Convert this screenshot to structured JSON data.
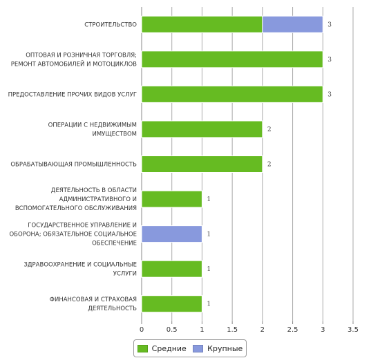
{
  "chart_data": {
    "type": "bar",
    "orientation": "horizontal",
    "stacked": true,
    "categories": [
      [
        "СТРОИТЕЛЬСТВО"
      ],
      [
        "ОПТОВАЯ И РОЗНИЧНАЯ ТОРГОВЛЯ;",
        "РЕМОНТ АВТОМОБИЛЕЙ И МОТОЦИКЛОВ"
      ],
      [
        "ПРЕДОСТАВЛЕНИЕ ПРОЧИХ ВИДОВ УСЛУГ"
      ],
      [
        "ОПЕРАЦИИ С НЕДВИЖИМЫМ",
        "ИМУЩЕСТВОМ"
      ],
      [
        "ОБРАБАТЫВАЮЩАЯ ПРОМЫШЛЕННОСТЬ"
      ],
      [
        "ДЕЯТЕЛЬНОСТЬ В ОБЛАСТИ",
        "АДМИНИСТРАТИВНОГО И",
        "ВСПОМОГАТЕЛЬНОГО ОБСЛУЖИВАНИЯ"
      ],
      [
        "ГОСУДАРСТВЕННОЕ УПРАВЛЕНИЕ И",
        "ОБОРОНА; ОБЯЗАТЕЛЬНОЕ СОЦИАЛЬНОЕ",
        "ОБЕСПЕЧЕНИЕ"
      ],
      [
        "ЗДРАВООХРАНЕНИЕ И СОЦИАЛЬНЫЕ",
        "УСЛУГИ"
      ],
      [
        "ФИНАНСОВАЯ И СТРАХОВАЯ",
        "ДЕЯТЕЛЬНОСТЬ"
      ]
    ],
    "series": [
      {
        "name": "Средние",
        "color": "#66bb22",
        "values": [
          2,
          3,
          3,
          2,
          2,
          1,
          0,
          1,
          1
        ]
      },
      {
        "name": "Крупные",
        "color": "#8899dd",
        "values": [
          1,
          0,
          0,
          0,
          0,
          0,
          1,
          0,
          0
        ]
      }
    ],
    "totals": [
      "3",
      "3",
      "3",
      "2",
      "2",
      "1",
      "1",
      "1",
      "1"
    ],
    "xlim": [
      0,
      3.5
    ],
    "xticks": [
      "0",
      "0.5",
      "1",
      "1.5",
      "2",
      "2.5",
      "3",
      "3.5"
    ],
    "grid": true,
    "legend_position": "bottom-center"
  }
}
